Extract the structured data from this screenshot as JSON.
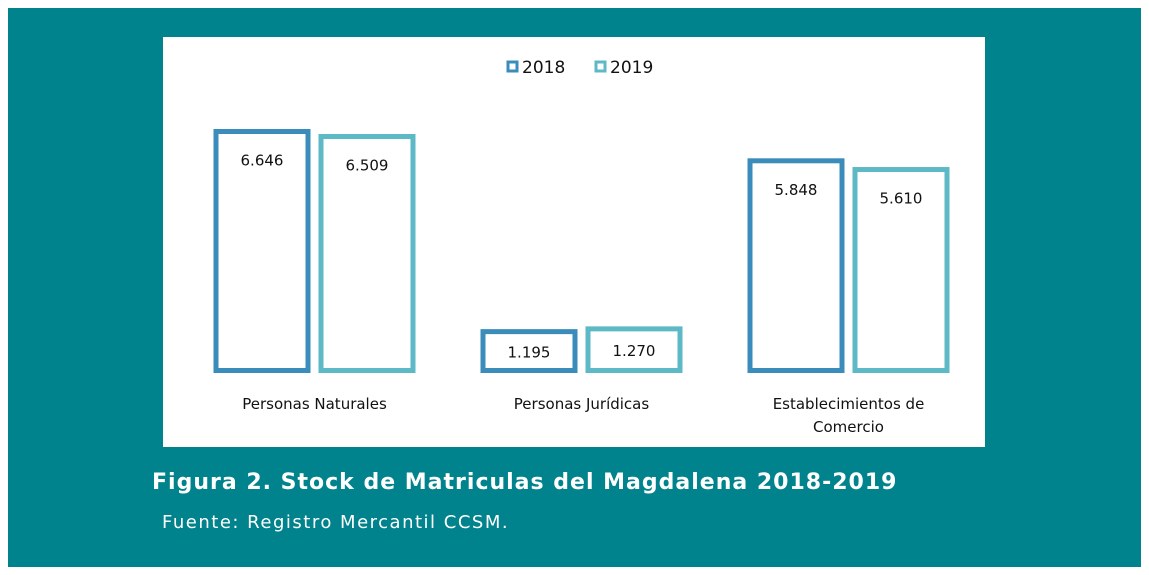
{
  "chart_data": {
    "type": "bar",
    "categories": [
      "Personas Naturales",
      "Personas Jurídicas",
      "Establecimientos de Comercio"
    ],
    "series": [
      {
        "name": "2018",
        "color": "#3a8dba",
        "values": [
          6646,
          1195,
          5848
        ],
        "value_labels": [
          "6.646",
          "1.195",
          "5.848"
        ]
      },
      {
        "name": "2019",
        "color": "#5cb9c5",
        "values": [
          6509,
          1270,
          5610
        ],
        "value_labels": [
          "6.509",
          "1.270",
          "5.610"
        ]
      }
    ],
    "legend": "top"
  },
  "caption": {
    "title": "Figura 2. Stock de Matriculas del Magdalena 2018-2019",
    "source": "Fuente: Registro Mercantil CCSM."
  }
}
